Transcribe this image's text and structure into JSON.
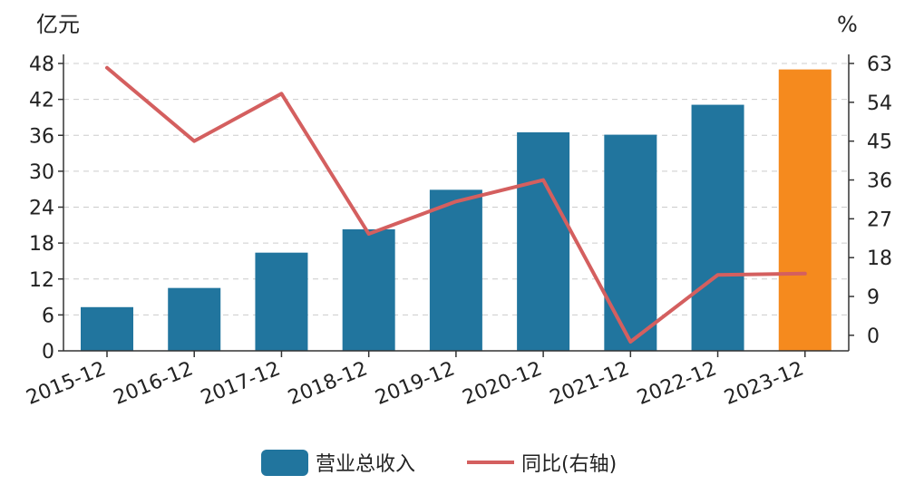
{
  "chart_data": {
    "type": "bar",
    "categories": [
      "2015-12",
      "2016-12",
      "2017-12",
      "2018-12",
      "2019-12",
      "2020-12",
      "2021-12",
      "2022-12",
      "2023-12"
    ],
    "y_left_unit": "亿元",
    "y_right_unit": "%",
    "left_axis": {
      "min": 0,
      "max": 48,
      "ticks": [
        0,
        6,
        12,
        18,
        24,
        30,
        36,
        42,
        48
      ]
    },
    "right_axis": {
      "min": -3.6,
      "max": 63,
      "ticks": [
        0,
        9,
        18,
        27,
        36,
        45,
        54,
        63
      ]
    },
    "series": [
      {
        "name": "营业总收入",
        "type": "bar",
        "axis": "left",
        "values": [
          7.3,
          10.5,
          16.4,
          20.3,
          26.9,
          36.5,
          36.1,
          41.1,
          47.0
        ],
        "color": "#21759e",
        "highlight_color": "#f58a1e",
        "highlight_index": 8
      },
      {
        "name": "同比(右轴)",
        "type": "line",
        "axis": "right",
        "values": [
          62.0,
          45.0,
          56.0,
          23.5,
          31.0,
          36.0,
          -1.5,
          14.0,
          14.3
        ],
        "color": "#d45f5f"
      }
    ],
    "grid": true,
    "grid_style": "dashed",
    "legend_position": "bottom-center"
  }
}
